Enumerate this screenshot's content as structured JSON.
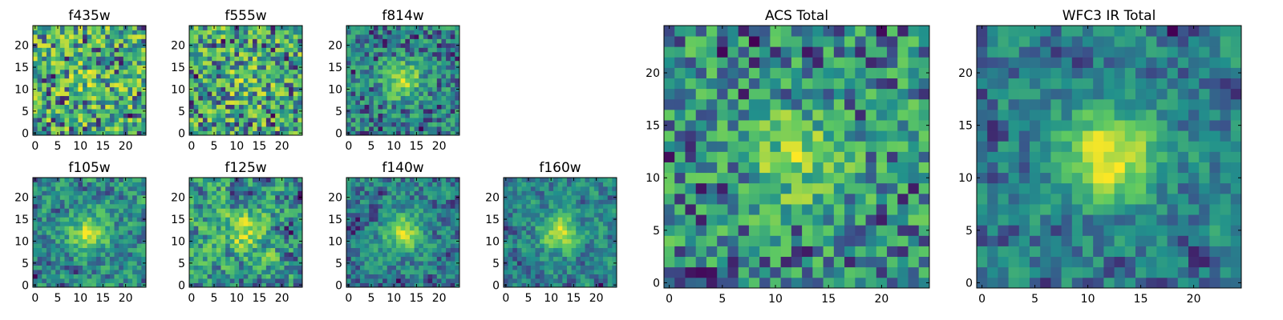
{
  "chart_data": [
    {
      "type": "heatmap",
      "title": "f435w",
      "size": 25,
      "seed": 11,
      "smooth": 0,
      "peak": 0.15,
      "xticks": [
        0,
        5,
        10,
        15,
        20
      ],
      "yticks": [
        0,
        5,
        10,
        15,
        20
      ],
      "xlim": [
        0,
        24
      ],
      "ylim": [
        0,
        24
      ]
    },
    {
      "type": "heatmap",
      "title": "f555w",
      "size": 25,
      "seed": 23,
      "smooth": 0,
      "peak": 0.2,
      "xticks": [
        0,
        5,
        10,
        15,
        20
      ],
      "yticks": [
        0,
        5,
        10,
        15,
        20
      ],
      "xlim": [
        0,
        24
      ],
      "ylim": [
        0,
        24
      ]
    },
    {
      "type": "heatmap",
      "title": "f814w",
      "size": 25,
      "seed": 37,
      "smooth": 0,
      "peak": 0.9,
      "xticks": [
        0,
        5,
        10,
        15,
        20
      ],
      "yticks": [
        0,
        5,
        10,
        15,
        20
      ],
      "xlim": [
        0,
        24
      ],
      "ylim": [
        0,
        24
      ]
    },
    {
      "type": "heatmap",
      "title": "f105w",
      "size": 25,
      "seed": 41,
      "smooth": 1,
      "peak": 0.7,
      "xticks": [
        0,
        5,
        10,
        15,
        20
      ],
      "yticks": [
        0,
        5,
        10,
        15,
        20
      ],
      "xlim": [
        0,
        24
      ],
      "ylim": [
        0,
        24
      ]
    },
    {
      "type": "heatmap",
      "title": "f125w",
      "size": 25,
      "seed": 53,
      "smooth": 1,
      "peak": 0.4,
      "xticks": [
        0,
        5,
        10,
        15,
        20
      ],
      "yticks": [
        0,
        5,
        10,
        15,
        20
      ],
      "xlim": [
        0,
        24
      ],
      "ylim": [
        0,
        24
      ]
    },
    {
      "type": "heatmap",
      "title": "f140w",
      "size": 25,
      "seed": 67,
      "smooth": 1,
      "peak": 0.8,
      "xticks": [
        0,
        5,
        10,
        15,
        20
      ],
      "yticks": [
        0,
        5,
        10,
        15,
        20
      ],
      "xlim": [
        0,
        24
      ],
      "ylim": [
        0,
        24
      ]
    },
    {
      "type": "heatmap",
      "title": "f160w",
      "size": 25,
      "seed": 79,
      "smooth": 1,
      "peak": 0.9,
      "xticks": [
        0,
        5,
        10,
        15,
        20
      ],
      "yticks": [
        0,
        5,
        10,
        15,
        20
      ],
      "xlim": [
        0,
        24
      ],
      "ylim": [
        0,
        24
      ]
    },
    {
      "type": "heatmap",
      "title": "ACS Total",
      "size": 25,
      "seed": 97,
      "smooth": 0,
      "peak": 0.6,
      "xticks": [
        0,
        5,
        10,
        15,
        20
      ],
      "yticks": [
        0,
        5,
        10,
        15,
        20
      ],
      "xlim": [
        0,
        24
      ],
      "ylim": [
        0,
        24
      ]
    },
    {
      "type": "heatmap",
      "title": "WFC3 IR Total",
      "size": 25,
      "seed": 113,
      "smooth": 1,
      "peak": 1.1,
      "xticks": [
        0,
        5,
        10,
        15,
        20
      ],
      "yticks": [
        0,
        5,
        10,
        15,
        20
      ],
      "xlim": [
        0,
        24
      ],
      "ylim": [
        0,
        24
      ]
    }
  ],
  "colormap": [
    "#440154",
    "#3b528b",
    "#21918c",
    "#5ec962",
    "#fde725"
  ]
}
